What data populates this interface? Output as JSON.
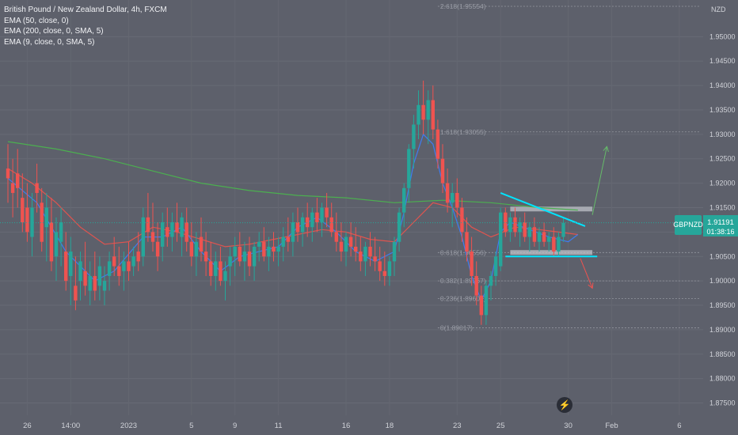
{
  "legend": {
    "title": "British Pound / New Zealand Dollar, 4h, FXCM",
    "indicators": [
      "EMA (50, close, 0)",
      "EMA (200, close, 0, SMA, 5)",
      "EMA (9, close, 0, SMA, 5)"
    ]
  },
  "price_badge": {
    "symbol": "GBPNZD",
    "price": "1.91191",
    "countdown": "01:38:16",
    "color": "#26a69a"
  },
  "colors": {
    "up": "#26a69a",
    "down": "#ef5350",
    "ema50": "#e0544f",
    "ema200": "#4caf50",
    "ema9": "#3f7cf0",
    "fib": "#9598a1",
    "zone": "#bfc2c8",
    "trendline": "#00e5ff",
    "arrow_up": "#66bb6a",
    "arrow_down": "#ef5350"
  },
  "icons": {
    "logo": "tradingview-bolt-icon"
  },
  "chart_data": {
    "type": "candlestick",
    "title": "British Pound / New Zealand Dollar, 4h, FXCM",
    "currency": "NZD",
    "ylim": [
      1.8725,
      1.9575
    ],
    "y_ticks": [
      "1.95000",
      "1.94500",
      "1.94000",
      "1.93500",
      "1.93000",
      "1.92500",
      "1.92000",
      "1.91500",
      "1.91000",
      "1.90500",
      "1.90000",
      "1.89500",
      "1.89000",
      "1.88500",
      "1.88000",
      "1.87500"
    ],
    "x_ticks": [
      {
        "label": "26",
        "idx": 4
      },
      {
        "label": "14:00",
        "idx": 13
      },
      {
        "label": "2023",
        "idx": 25
      },
      {
        "label": "5",
        "idx": 38
      },
      {
        "label": "9",
        "idx": 47
      },
      {
        "label": "11",
        "idx": 56
      },
      {
        "label": "16",
        "idx": 70
      },
      {
        "label": "18",
        "idx": 79
      },
      {
        "label": "23",
        "idx": 93
      },
      {
        "label": "25",
        "idx": 102
      },
      {
        "label": "30",
        "idx": 116
      },
      {
        "label": "Feb",
        "idx": 125
      },
      {
        "label": "6",
        "idx": 139
      }
    ],
    "fib_levels": [
      {
        "label": "2.618(1.95554)",
        "value": 1.9562
      },
      {
        "label": "1.618(1.93055)",
        "value": 1.9305
      },
      {
        "label": "0.618(1.90556)",
        "value": 1.9058
      },
      {
        "label": "0.382(1.89967)",
        "value": 1.9
      },
      {
        "label": "0.236(1.89602)",
        "value": 1.8964
      },
      {
        "label": "0(1.89017)",
        "value": 1.8904
      }
    ],
    "zones": [
      {
        "from_idx": 104,
        "to_idx": 121,
        "top": 1.9152,
        "bottom": 1.9145
      },
      {
        "from_idx": 104,
        "to_idx": 121,
        "top": 1.9063,
        "bottom": 1.9056
      }
    ],
    "trendlines": [
      {
        "x1": 102,
        "y1": 1.918,
        "x2": 119.5,
        "y2": 1.9112
      },
      {
        "x1": 103,
        "y1": 1.905,
        "x2": 122,
        "y2": 1.905
      }
    ],
    "arrows": [
      {
        "x1": 121,
        "y1": 1.9135,
        "x2": 124,
        "y2": 1.9275,
        "dir": "up"
      },
      {
        "x1": 118.5,
        "y1": 1.9046,
        "x2": 121,
        "y2": 1.8985,
        "dir": "down"
      }
    ],
    "ohlc": [
      [
        1.923,
        1.928,
        1.916,
        1.921
      ],
      [
        1.92,
        1.925,
        1.913,
        1.918
      ],
      [
        1.922,
        1.927,
        1.915,
        1.919
      ],
      [
        1.917,
        1.922,
        1.91,
        1.912
      ],
      [
        1.915,
        1.92,
        1.908,
        1.91
      ],
      [
        1.909,
        1.918,
        1.905,
        1.915
      ],
      [
        1.92,
        1.924,
        1.914,
        1.918
      ],
      [
        1.916,
        1.919,
        1.906,
        1.908
      ],
      [
        1.911,
        1.918,
        1.904,
        1.915
      ],
      [
        1.912,
        1.917,
        1.902,
        1.904
      ],
      [
        1.905,
        1.913,
        1.9,
        1.91
      ],
      [
        1.908,
        1.915,
        1.903,
        1.912
      ],
      [
        1.906,
        1.91,
        1.898,
        1.9
      ],
      [
        1.901,
        1.909,
        1.895,
        1.906
      ],
      [
        1.899,
        1.905,
        1.894,
        1.896
      ],
      [
        1.9,
        1.906,
        1.896,
        1.904
      ],
      [
        1.902,
        1.908,
        1.897,
        1.899
      ],
      [
        1.898,
        1.904,
        1.895,
        1.901
      ],
      [
        1.901,
        1.906,
        1.896,
        1.898
      ],
      [
        1.899,
        1.905,
        1.896,
        1.903
      ],
      [
        1.898,
        1.903,
        1.895,
        1.9
      ],
      [
        1.901,
        1.906,
        1.898,
        1.904
      ],
      [
        1.905,
        1.909,
        1.901,
        1.903
      ],
      [
        1.903,
        1.907,
        1.899,
        1.901
      ],
      [
        1.902,
        1.906,
        1.898,
        1.904
      ],
      [
        1.904,
        1.908,
        1.9,
        1.902
      ],
      [
        1.903,
        1.907,
        1.901,
        1.905
      ],
      [
        1.906,
        1.91,
        1.902,
        1.904
      ],
      [
        1.905,
        1.915,
        1.903,
        1.913
      ],
      [
        1.913,
        1.918,
        1.908,
        1.91
      ],
      [
        1.91,
        1.916,
        1.906,
        1.908
      ],
      [
        1.908,
        1.912,
        1.902,
        1.905
      ],
      [
        1.907,
        1.914,
        1.904,
        1.912
      ],
      [
        1.911,
        1.915,
        1.907,
        1.909
      ],
      [
        1.909,
        1.914,
        1.906,
        1.912
      ],
      [
        1.912,
        1.916,
        1.908,
        1.91
      ],
      [
        1.909,
        1.914,
        1.905,
        1.913
      ],
      [
        1.912,
        1.915,
        1.906,
        1.908
      ],
      [
        1.908,
        1.912,
        1.903,
        1.905
      ],
      [
        1.905,
        1.91,
        1.901,
        1.908
      ],
      [
        1.909,
        1.913,
        1.904,
        1.906
      ],
      [
        1.906,
        1.91,
        1.901,
        1.904
      ],
      [
        1.904,
        1.908,
        1.899,
        1.901
      ],
      [
        1.901,
        1.906,
        1.898,
        1.904
      ],
      [
        1.904,
        1.907,
        1.899,
        1.9
      ],
      [
        1.9,
        1.904,
        1.896,
        1.902
      ],
      [
        1.903,
        1.907,
        1.899,
        1.905
      ],
      [
        1.905,
        1.909,
        1.901,
        1.907
      ],
      [
        1.907,
        1.91,
        1.903,
        1.904
      ],
      [
        1.904,
        1.908,
        1.9,
        1.906
      ],
      [
        1.906,
        1.909,
        1.901,
        1.903
      ],
      [
        1.903,
        1.908,
        1.9,
        1.907
      ],
      [
        1.907,
        1.91,
        1.904,
        1.908
      ],
      [
        1.908,
        1.911,
        1.904,
        1.905
      ],
      [
        1.905,
        1.909,
        1.902,
        1.907
      ],
      [
        1.907,
        1.91,
        1.904,
        1.906
      ],
      [
        1.906,
        1.909,
        1.903,
        1.907
      ],
      [
        1.907,
        1.911,
        1.904,
        1.909
      ],
      [
        1.909,
        1.913,
        1.906,
        1.908
      ],
      [
        1.908,
        1.914,
        1.905,
        1.912
      ],
      [
        1.912,
        1.915,
        1.908,
        1.91
      ],
      [
        1.91,
        1.914,
        1.907,
        1.913
      ],
      [
        1.913,
        1.916,
        1.909,
        1.911
      ],
      [
        1.911,
        1.915,
        1.908,
        1.914
      ],
      [
        1.914,
        1.917,
        1.91,
        1.912
      ],
      [
        1.912,
        1.916,
        1.909,
        1.915
      ],
      [
        1.915,
        1.918,
        1.911,
        1.913
      ],
      [
        1.913,
        1.916,
        1.909,
        1.91
      ],
      [
        1.91,
        1.914,
        1.906,
        1.908
      ],
      [
        1.908,
        1.912,
        1.904,
        1.906
      ],
      [
        1.906,
        1.91,
        1.903,
        1.909
      ],
      [
        1.909,
        1.912,
        1.905,
        1.907
      ],
      [
        1.907,
        1.911,
        1.904,
        1.906
      ],
      [
        1.906,
        1.909,
        1.902,
        1.904
      ],
      [
        1.904,
        1.908,
        1.901,
        1.907
      ],
      [
        1.907,
        1.91,
        1.903,
        1.905
      ],
      [
        1.905,
        1.909,
        1.902,
        1.904
      ],
      [
        1.904,
        1.907,
        1.9,
        1.902
      ],
      [
        1.902,
        1.906,
        1.899,
        1.901
      ],
      [
        1.901,
        1.905,
        1.899,
        1.904
      ],
      [
        1.904,
        1.909,
        1.901,
        1.908
      ],
      [
        1.908,
        1.915,
        1.906,
        1.914
      ],
      [
        1.914,
        1.92,
        1.911,
        1.919
      ],
      [
        1.919,
        1.928,
        1.916,
        1.927
      ],
      [
        1.927,
        1.934,
        1.923,
        1.932
      ],
      [
        1.932,
        1.939,
        1.929,
        1.936
      ],
      [
        1.936,
        1.941,
        1.93,
        1.933
      ],
      [
        1.933,
        1.939,
        1.928,
        1.937
      ],
      [
        1.937,
        1.94,
        1.929,
        1.931
      ],
      [
        1.931,
        1.933,
        1.923,
        1.925
      ],
      [
        1.925,
        1.928,
        1.918,
        1.92
      ],
      [
        1.92,
        1.923,
        1.914,
        1.916
      ],
      [
        1.916,
        1.92,
        1.911,
        1.918
      ],
      [
        1.918,
        1.921,
        1.913,
        1.915
      ],
      [
        1.915,
        1.917,
        1.908,
        1.91
      ],
      [
        1.91,
        1.913,
        1.904,
        1.906
      ],
      [
        1.906,
        1.909,
        1.899,
        1.901
      ],
      [
        1.901,
        1.904,
        1.895,
        1.897
      ],
      [
        1.897,
        1.899,
        1.891,
        1.893
      ],
      [
        1.893,
        1.9,
        1.891,
        1.899
      ],
      [
        1.899,
        1.902,
        1.896,
        1.901
      ],
      [
        1.901,
        1.906,
        1.899,
        1.905
      ],
      [
        1.903,
        1.915,
        1.902,
        1.914
      ],
      [
        1.914,
        1.915,
        1.909,
        1.91
      ],
      [
        1.91,
        1.914,
        1.908,
        1.913
      ],
      [
        1.913,
        1.915,
        1.909,
        1.91
      ],
      [
        1.91,
        1.913,
        1.907,
        1.912
      ],
      [
        1.912,
        1.914,
        1.908,
        1.909
      ],
      [
        1.909,
        1.912,
        1.906,
        1.911
      ],
      [
        1.911,
        1.913,
        1.907,
        1.908
      ],
      [
        1.908,
        1.911,
        1.906,
        1.91
      ],
      [
        1.91,
        1.912,
        1.907,
        1.908
      ],
      [
        1.908,
        1.91,
        1.906,
        1.909
      ],
      [
        1.909,
        1.911,
        1.905,
        1.906
      ],
      [
        1.906,
        1.91,
        1.905,
        1.909
      ],
      [
        1.909,
        1.913,
        1.908,
        1.9119
      ]
    ],
    "ema200": [
      [
        0,
        1.9285
      ],
      [
        10,
        1.927
      ],
      [
        20,
        1.925
      ],
      [
        30,
        1.9225
      ],
      [
        40,
        1.92
      ],
      [
        50,
        1.9185
      ],
      [
        60,
        1.9175
      ],
      [
        70,
        1.917
      ],
      [
        80,
        1.916
      ],
      [
        90,
        1.9165
      ],
      [
        100,
        1.916
      ],
      [
        110,
        1.915
      ],
      [
        118,
        1.9145
      ]
    ],
    "ema50": [
      [
        0,
        1.923
      ],
      [
        5,
        1.92
      ],
      [
        10,
        1.916
      ],
      [
        15,
        1.911
      ],
      [
        20,
        1.9075
      ],
      [
        25,
        1.908
      ],
      [
        30,
        1.911
      ],
      [
        35,
        1.91
      ],
      [
        40,
        1.9085
      ],
      [
        45,
        1.907
      ],
      [
        50,
        1.9075
      ],
      [
        55,
        1.9085
      ],
      [
        60,
        1.9095
      ],
      [
        65,
        1.9105
      ],
      [
        70,
        1.91
      ],
      [
        75,
        1.9085
      ],
      [
        80,
        1.908
      ],
      [
        84,
        1.912
      ],
      [
        88,
        1.916
      ],
      [
        92,
        1.915
      ],
      [
        96,
        1.911
      ],
      [
        100,
        1.909
      ],
      [
        105,
        1.911
      ],
      [
        110,
        1.9105
      ],
      [
        114,
        1.91
      ],
      [
        118,
        1.9095
      ]
    ],
    "ema9": [
      [
        0,
        1.921
      ],
      [
        6,
        1.916
      ],
      [
        12,
        1.906
      ],
      [
        18,
        1.9
      ],
      [
        22,
        1.902
      ],
      [
        28,
        1.909
      ],
      [
        32,
        1.909
      ],
      [
        36,
        1.911
      ],
      [
        40,
        1.906
      ],
      [
        44,
        1.902
      ],
      [
        48,
        1.905
      ],
      [
        52,
        1.906
      ],
      [
        56,
        1.907
      ],
      [
        60,
        1.911
      ],
      [
        64,
        1.913
      ],
      [
        68,
        1.91
      ],
      [
        72,
        1.906
      ],
      [
        76,
        1.904
      ],
      [
        80,
        1.906
      ],
      [
        82,
        1.914
      ],
      [
        84,
        1.924
      ],
      [
        86,
        1.93
      ],
      [
        88,
        1.928
      ],
      [
        90,
        1.92
      ],
      [
        92,
        1.915
      ],
      [
        94,
        1.909
      ],
      [
        96,
        1.901
      ],
      [
        98,
        1.896
      ],
      [
        100,
        1.9
      ],
      [
        102,
        1.91
      ],
      [
        104,
        1.912
      ],
      [
        108,
        1.9105
      ],
      [
        112,
        1.909
      ],
      [
        116,
        1.908
      ],
      [
        118,
        1.9095
      ]
    ]
  }
}
